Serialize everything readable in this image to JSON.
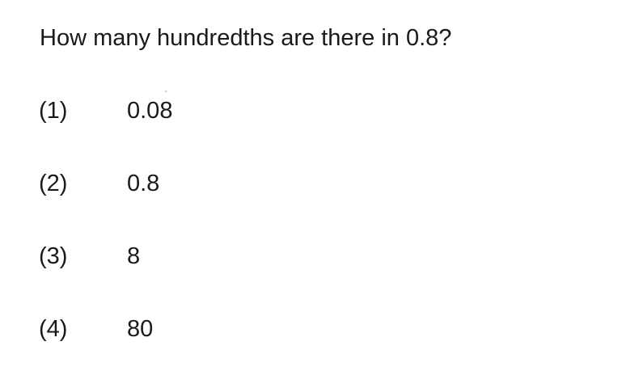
{
  "question": {
    "text": "How many hundredths are there in 0.8?"
  },
  "options": [
    {
      "number": "(1)",
      "value": "0.08"
    },
    {
      "number": "(2)",
      "value": "0.8"
    },
    {
      "number": "(3)",
      "value": "8"
    },
    {
      "number": "(4)",
      "value": "80"
    }
  ]
}
